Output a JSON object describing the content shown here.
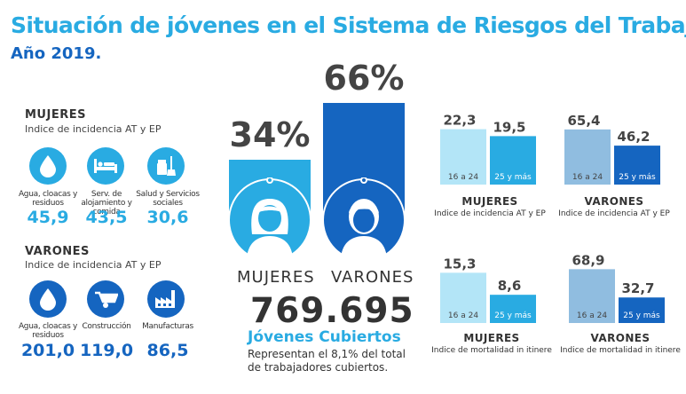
{
  "header": {
    "title": "Situación de jóvenes en el Sistema de Riesgos del Trabajo.",
    "subtitle": "Año 2019."
  },
  "mujeres_section": {
    "title": "MUJERES",
    "subtitle": "Indice de incidencia AT y EP",
    "items": [
      {
        "label": "Agua, cloacas y residuos",
        "value": "45,9",
        "icon": "water-drop-icon"
      },
      {
        "label": "Serv. de alojamiento y comida",
        "value": "43,5",
        "icon": "bed-icon"
      },
      {
        "label": "Salud y Servicios sociales",
        "value": "30,6",
        "icon": "cleaning-icon"
      }
    ]
  },
  "varones_section": {
    "title": "VARONES",
    "subtitle": "Indice de incidencia AT y EP",
    "items": [
      {
        "label": "Agua, cloacas y residuos",
        "value": "201,0",
        "icon": "water-drop-icon"
      },
      {
        "label": "Construcción",
        "value": "119,0",
        "icon": "wheelbarrow-icon"
      },
      {
        "label": "Manufacturas",
        "value": "86,5",
        "icon": "factory-icon"
      }
    ]
  },
  "center": {
    "mujeres_pct": "34%",
    "varones_pct": "66%",
    "mujeres_share": 34,
    "varones_share": 66,
    "mujeres_label": "MUJERES",
    "varones_label": "VARONES",
    "total": "769.695",
    "total_label": "Jóvenes Cubiertos",
    "note_line1": "Representan el 8,1% del total",
    "note_line2": "de trabajadores cubiertos."
  },
  "colors": {
    "light_blue": "#29abe2",
    "dark_blue": "#1565c0",
    "pale_blue": "#b3e5f7",
    "grey_blue": "#90bde0"
  },
  "chart_data": [
    {
      "type": "bar",
      "title": "MUJERES",
      "subtitle": "Indice de incidencia AT y EP",
      "categories": [
        "16 a 24",
        "25 y más"
      ],
      "values": [
        22.3,
        19.5
      ],
      "value_labels": [
        "22,3",
        "19,5"
      ],
      "colors": [
        "#b3e5f7",
        "#29abe2"
      ]
    },
    {
      "type": "bar",
      "title": "VARONES",
      "subtitle": "Indice de incidencia AT y EP",
      "categories": [
        "16 a 24",
        "25 y más"
      ],
      "values": [
        65.4,
        46.2
      ],
      "value_labels": [
        "65,4",
        "46,2"
      ],
      "colors": [
        "#90bde0",
        "#1565c0"
      ]
    },
    {
      "type": "bar",
      "title": "MUJERES",
      "subtitle": "Indice de mortalidad in itinere",
      "categories": [
        "16 a 24",
        "25 y más"
      ],
      "values": [
        15.3,
        8.6
      ],
      "value_labels": [
        "15,3",
        "8,6"
      ],
      "colors": [
        "#b3e5f7",
        "#29abe2"
      ]
    },
    {
      "type": "bar",
      "title": "VARONES",
      "subtitle": "Indice de mortalidad in itinere",
      "categories": [
        "16 a 24",
        "25 y más"
      ],
      "values": [
        68.9,
        32.7
      ],
      "value_labels": [
        "68,9",
        "32,7"
      ],
      "colors": [
        "#90bde0",
        "#1565c0"
      ]
    }
  ]
}
